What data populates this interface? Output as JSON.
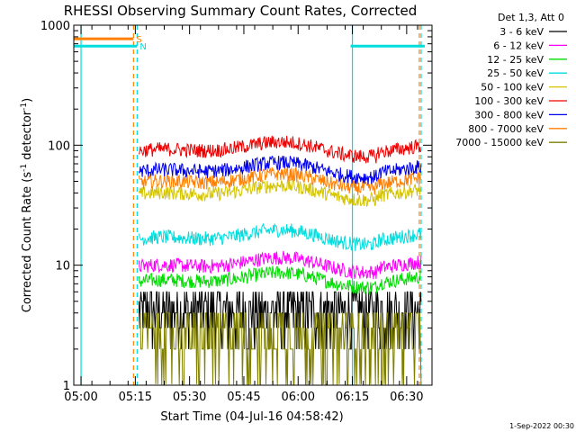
{
  "chart_data": {
    "type": "line",
    "title": "RHESSI Observing Summary Count Rates, Corrected",
    "xlabel": "Start Time (04-Jul-16 04:58:42)",
    "ylabel_main": "Corrected Count Rate (s",
    "ylabel_sup1": "-1",
    "ylabel_mid": " detector",
    "ylabel_sup2": "-1",
    "ylabel_end": ")",
    "ylim": [
      1,
      1000
    ],
    "y_scale": "log",
    "xlim_minutes": [
      -2,
      97
    ],
    "x_ticks": [
      {
        "minute": 0,
        "label": "05:00"
      },
      {
        "minute": 15,
        "label": "05:15"
      },
      {
        "minute": 30,
        "label": "05:30"
      },
      {
        "minute": 45,
        "label": "05:45"
      },
      {
        "minute": 60,
        "label": "06:00"
      },
      {
        "minute": 75,
        "label": "06:15"
      },
      {
        "minute": 90,
        "label": "06:30"
      }
    ],
    "y_ticks": [
      {
        "value": 1,
        "label": "1"
      },
      {
        "value": 10,
        "label": "10"
      },
      {
        "value": 100,
        "label": "100"
      },
      {
        "value": 1000,
        "label": "1000"
      }
    ],
    "legend_header": "Det 1,3, Att 0",
    "legend_placement": "right",
    "series": [
      {
        "name": "3 - 6 keV",
        "color": "#000000",
        "approx_level": 4.2
      },
      {
        "name": "6 - 12 keV",
        "color": "#ff00ff",
        "approx_level": 10
      },
      {
        "name": "12 - 25 keV",
        "color": "#00dd00",
        "approx_level": 7.5
      },
      {
        "name": "25 - 50 keV",
        "color": "#00dddd",
        "approx_level": 17
      },
      {
        "name": "50 - 100 keV",
        "color": "#d4c400",
        "approx_level": 40
      },
      {
        "name": "100 - 300 keV",
        "color": "#ee0000",
        "approx_level": 92
      },
      {
        "name": "300 - 800 keV",
        "color": "#0000ee",
        "approx_level": 62
      },
      {
        "name": "800 - 7000 keV",
        "color": "#ff7f00",
        "approx_level": 50
      },
      {
        "name": "7000 - 15000 keV",
        "color": "#7f7f00",
        "approx_level": 2.8
      }
    ],
    "flags": [
      {
        "label": "S",
        "color": "#ff7f00",
        "start_minute": -2,
        "end_minute": 14.5,
        "level": 770
      },
      {
        "label": "N",
        "color": "#00dddd",
        "start_minute": -2,
        "end_minute": 15.5,
        "level": 670
      },
      {
        "label": "",
        "color": "#00dddd",
        "start_minute": 74.5,
        "end_minute": 95,
        "level": 670
      }
    ],
    "markers_minutes": {
      "orange_dashed": [
        14.5,
        93.5
      ],
      "cyan_dashed": [
        15.5,
        94
      ],
      "cyan_solid": [
        0,
        75
      ]
    }
  },
  "footer_date": "1-Sep-2022 00:30"
}
